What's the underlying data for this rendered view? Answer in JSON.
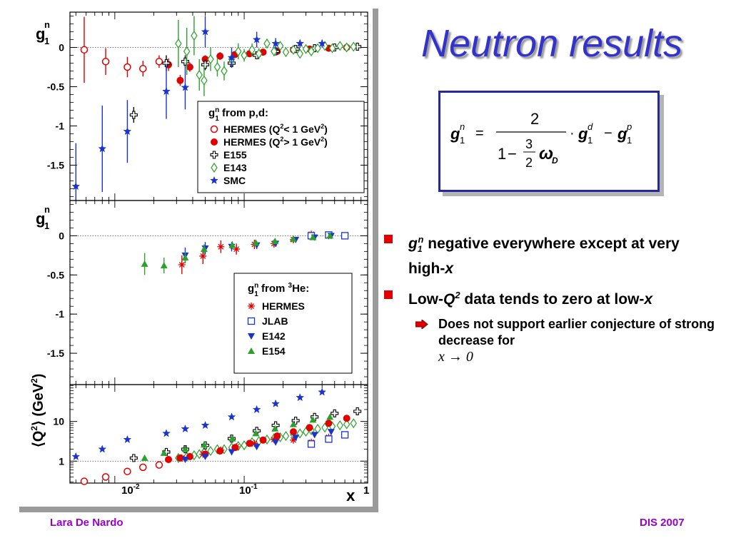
{
  "slide": {
    "title": "Neutron results",
    "footer_left": "Lara De Nardo",
    "footer_right": "DIS 2007"
  },
  "formula": {
    "lhs": "g",
    "lhs_sup": "n",
    "lhs_sub": "1",
    "equals": "=",
    "numerator": "2",
    "denom_one": "1",
    "denom_minus": "−",
    "frac_num": "3",
    "frac_den": "2",
    "omega": "ω",
    "omega_sub": "D",
    "dot": "·",
    "g_d": "g",
    "g_d_sup": "d",
    "g_d_sub": "1",
    "minus": "−",
    "g_p": "g",
    "g_p_sup": "p",
    "g_p_sub": "1"
  },
  "bullets": [
    {
      "italic": "g",
      "sub": "1",
      "sup": "n",
      "text": " negative everywhere except at very high-",
      "tail": "x"
    },
    {
      "pre": "Low-",
      "italic": "Q",
      "sup": "2",
      "text": " data tends to zero at low-",
      "tail": "x"
    }
  ],
  "sub_bullet": {
    "text": "Does not support earlier conjecture of strong decrease for",
    "math": "x → 0"
  },
  "colors": {
    "title": "#3333cc",
    "footer": "#9900cc",
    "bullet": "#e00000",
    "box_border": "#26289a"
  },
  "chart_data": [
    {
      "type": "scatter",
      "title": "",
      "ylabel_main": "g",
      "ylabel_sup": "n",
      "ylabel_sub": "1",
      "xscale": "log",
      "xlim": [
        0.0045,
        0.9
      ],
      "ylim": [
        -1.95,
        0.45
      ],
      "yticks": [
        "0",
        "-0.5",
        "-1",
        "-1.5"
      ],
      "ytick_values": [
        0,
        -0.5,
        -1,
        -1.5
      ],
      "legend": {
        "title": "g",
        "title_sup": "n",
        "title_sub": "1",
        "title_rest": " from p,d:",
        "placement": "bottom-right",
        "entries": [
          "HERMES (Q",
          "HERMES (Q",
          "E155",
          "E143",
          "SMC"
        ],
        "entries_sup": [
          "2",
          "2",
          "",
          "",
          ""
        ],
        "entries_rest": [
          "< 1 GeV",
          "> 1 GeV",
          "",
          "",
          ""
        ],
        "entries_sup2": [
          "2",
          "2",
          "",
          "",
          ""
        ],
        "entries_tail": [
          ")",
          ")",
          "",
          "",
          ""
        ]
      },
      "series": [
        {
          "name": "HERMES (Q2< 1 GeV2)",
          "marker": "circle-open",
          "color": "#e00000",
          "x": [
            0.0058,
            0.0085,
            0.0125,
            0.0165,
            0.022
          ],
          "y": [
            -0.03,
            -0.18,
            -0.25,
            -0.27,
            -0.18
          ],
          "err": [
            0.42,
            0.17,
            0.13,
            0.1,
            0.08
          ]
        },
        {
          "name": "HERMES (Q2> 1 GeV2)",
          "marker": "circle-filled",
          "color": "#e00000",
          "x": [
            0.026,
            0.032,
            0.038,
            0.05,
            0.065,
            0.085,
            0.11,
            0.14,
            0.18,
            0.24,
            0.32,
            0.45,
            0.62
          ],
          "y": [
            -0.22,
            -0.42,
            -0.25,
            -0.15,
            -0.11,
            -0.09,
            -0.08,
            -0.06,
            -0.05,
            -0.03,
            -0.02,
            -0.01,
            0.0
          ],
          "err": [
            0.08,
            0.07,
            0.06,
            0.05,
            0.05,
            0.04,
            0.04,
            0.03,
            0.03,
            0.03,
            0.02,
            0.02,
            0.02
          ]
        },
        {
          "name": "E155",
          "marker": "cross-open",
          "color": "#000000",
          "x": [
            0.014,
            0.025,
            0.035,
            0.05,
            0.08,
            0.125,
            0.175,
            0.25,
            0.35,
            0.5,
            0.75
          ],
          "y": [
            -0.86,
            -0.2,
            -0.18,
            -0.22,
            -0.2,
            -0.1,
            -0.05,
            -0.02,
            -0.01,
            0.0,
            0.01
          ],
          "err": [
            0.1,
            0.1,
            0.08,
            0.07,
            0.05,
            0.04,
            0.03,
            0.03,
            0.02,
            0.02,
            0.02
          ]
        },
        {
          "name": "E143",
          "marker": "diamond-open",
          "color": "#2ca02c",
          "x": [
            0.031,
            0.036,
            0.041,
            0.045,
            0.049,
            0.055,
            0.062,
            0.07,
            0.08,
            0.09,
            0.1,
            0.115,
            0.13,
            0.15,
            0.17,
            0.19,
            0.21,
            0.24,
            0.27,
            0.3,
            0.33,
            0.37,
            0.42,
            0.48,
            0.55,
            0.62,
            0.7
          ],
          "y": [
            0.05,
            -0.05,
            0.15,
            -0.35,
            -0.42,
            -0.15,
            -0.25,
            -0.3,
            -0.15,
            -0.05,
            -0.1,
            -0.03,
            -0.08,
            0.05,
            -0.05,
            0.02,
            -0.06,
            -0.03,
            -0.08,
            -0.02,
            -0.05,
            -0.01,
            0.02,
            -0.01,
            0.02,
            0.0,
            0.01
          ],
          "err": [
            0.3,
            0.3,
            0.25,
            0.2,
            0.2,
            0.15,
            0.12,
            0.12,
            0.1,
            0.1,
            0.08,
            0.08,
            0.07,
            0.06,
            0.06,
            0.05,
            0.05,
            0.04,
            0.04,
            0.04,
            0.03,
            0.03,
            0.03,
            0.03,
            0.02,
            0.02,
            0.02
          ]
        },
        {
          "name": "SMC",
          "marker": "star",
          "color": "#1a33cc",
          "x": [
            0.005,
            0.008,
            0.0125,
            0.025,
            0.035,
            0.05,
            0.08,
            0.125,
            0.175,
            0.27,
            0.4
          ],
          "y": [
            -1.77,
            -1.29,
            -1.07,
            -0.56,
            -0.51,
            0.2,
            -0.13,
            0.1,
            0.05,
            0.05,
            0.05
          ],
          "err": [
            0.55,
            0.55,
            0.4,
            0.35,
            0.28,
            0.2,
            0.13,
            0.1,
            0.07,
            0.05,
            0.05
          ]
        }
      ]
    },
    {
      "type": "scatter",
      "title": "",
      "ylabel_main": "g",
      "ylabel_sup": "n",
      "ylabel_sub": "1",
      "xscale": "log",
      "xlim": [
        0.0045,
        0.9
      ],
      "ylim": [
        -1.9,
        0.45
      ],
      "yticks": [
        "0",
        "-0.5",
        "-1",
        "-1.5"
      ],
      "ytick_values": [
        0,
        -0.5,
        -1,
        -1.5
      ],
      "legend": {
        "title": "g",
        "title_sup": "n",
        "title_sub": "1",
        "title_rest": " from ",
        "title_sup2": "3",
        "title_tail": "He:",
        "placement": "bottom-right",
        "entries": [
          "HERMES",
          "JLAB",
          "E142",
          "E154"
        ]
      },
      "series": [
        {
          "name": "HERMES",
          "marker": "asterisk",
          "color": "#e00000",
          "x": [
            0.033,
            0.048,
            0.066,
            0.087,
            0.12,
            0.17,
            0.24,
            0.33,
            0.45
          ],
          "y": [
            -0.37,
            -0.26,
            -0.14,
            -0.17,
            -0.11,
            -0.1,
            -0.05,
            0.02,
            0.0
          ],
          "err": [
            0.12,
            0.1,
            0.08,
            0.07,
            0.06,
            0.05,
            0.04,
            0.03,
            0.03
          ]
        },
        {
          "name": "JLAB",
          "marker": "square-open",
          "color": "#1a33cc",
          "x": [
            0.33,
            0.45,
            0.6
          ],
          "y": [
            0.0,
            0.01,
            0.0
          ],
          "err": [
            0.02,
            0.02,
            0.02
          ]
        },
        {
          "name": "E142",
          "marker": "triangle-down",
          "color": "#1a33cc",
          "x": [
            0.035,
            0.05,
            0.08,
            0.125,
            0.175,
            0.25,
            0.35,
            0.47
          ],
          "y": [
            -0.25,
            -0.16,
            -0.14,
            -0.12,
            -0.1,
            -0.05,
            -0.02,
            0.0
          ],
          "err": [
            0.1,
            0.08,
            0.06,
            0.05,
            0.04,
            0.03,
            0.03,
            0.02
          ]
        },
        {
          "name": "E154",
          "marker": "triangle-up",
          "color": "#2ca02c",
          "x": [
            0.017,
            0.024,
            0.035,
            0.049,
            0.081,
            0.123,
            0.173,
            0.24,
            0.34,
            0.46
          ],
          "y": [
            -0.36,
            -0.38,
            -0.28,
            -0.17,
            -0.12,
            -0.09,
            -0.07,
            -0.04,
            -0.02,
            0.0
          ],
          "err": [
            0.14,
            0.1,
            0.07,
            0.06,
            0.05,
            0.04,
            0.03,
            0.03,
            0.02,
            0.02
          ]
        }
      ]
    },
    {
      "type": "scatter",
      "title": "",
      "ylabel": "⟨Q²⟩ (GeV²)",
      "ylabel_l": "⟨Q",
      "ylabel_sup": "2",
      "ylabel_r": "⟩ (GeV",
      "ylabel_sup2": "2",
      "ylabel_end": ")",
      "xscale": "log",
      "yscale": "log",
      "xlim": [
        0.0045,
        0.9
      ],
      "ylim": [
        0.28,
        85
      ],
      "yticks": [
        "1",
        "10"
      ],
      "ytick_values": [
        1,
        10
      ],
      "xticks": [
        "10",
        "10",
        "1"
      ],
      "xticks_sup": [
        "-2",
        "-1",
        ""
      ],
      "xtick_values": [
        0.01,
        0.1,
        1
      ],
      "xlabel": "x",
      "series": [
        {
          "name": "SMC",
          "marker": "star",
          "color": "#1a33cc",
          "x": [
            0.005,
            0.008,
            0.0125,
            0.025,
            0.035,
            0.05,
            0.08,
            0.125,
            0.175,
            0.27,
            0.4
          ],
          "y": [
            1.3,
            2.0,
            3.5,
            5.0,
            6.5,
            8.0,
            13.0,
            20.0,
            28.0,
            40.0,
            55.0
          ]
        },
        {
          "name": "E143",
          "marker": "diamond-open",
          "color": "#2ca02c",
          "x": [
            0.031,
            0.036,
            0.041,
            0.045,
            0.049,
            0.055,
            0.062,
            0.07,
            0.08,
            0.09,
            0.1,
            0.115,
            0.13,
            0.15,
            0.17,
            0.19,
            0.21,
            0.24,
            0.27,
            0.3,
            0.33,
            0.37,
            0.42,
            0.48,
            0.55,
            0.62,
            0.7
          ],
          "y": [
            1.2,
            1.3,
            1.4,
            1.5,
            1.7,
            1.8,
            2.0,
            2.0,
            2.2,
            2.4,
            2.5,
            3.0,
            3.2,
            3.5,
            3.8,
            4.0,
            4.3,
            4.7,
            5.0,
            5.5,
            6.0,
            6.5,
            7.0,
            7.5,
            8.0,
            8.5,
            9.0
          ]
        },
        {
          "name": "E155",
          "marker": "cross-open",
          "color": "#000000",
          "x": [
            0.014,
            0.025,
            0.035,
            0.05,
            0.08,
            0.125,
            0.175,
            0.25,
            0.35,
            0.5,
            0.75
          ],
          "y": [
            1.2,
            1.7,
            2.0,
            2.5,
            3.7,
            5.8,
            8.0,
            10.5,
            13.0,
            16.0,
            18.0
          ]
        },
        {
          "name": "HERMES (Q2< 1 GeV2)",
          "marker": "circle-open",
          "color": "#e00000",
          "x": [
            0.0058,
            0.0085,
            0.0125,
            0.0165,
            0.022
          ],
          "y": [
            0.31,
            0.4,
            0.55,
            0.7,
            0.8
          ]
        },
        {
          "name": "HERMES (Q2> 1 GeV2)",
          "marker": "circle-filled",
          "color": "#e00000",
          "x": [
            0.026,
            0.032,
            0.038,
            0.05,
            0.065,
            0.085,
            0.11,
            0.14,
            0.18,
            0.24,
            0.32,
            0.45,
            0.62
          ],
          "y": [
            1.1,
            1.2,
            1.3,
            1.5,
            1.8,
            2.2,
            2.8,
            3.4,
            4.3,
            5.5,
            7.0,
            9.0,
            12.0
          ]
        },
        {
          "name": "HERMES 3He",
          "marker": "asterisk",
          "color": "#e00000",
          "x": [
            0.033,
            0.048,
            0.066,
            0.087,
            0.12,
            0.17,
            0.24,
            0.33,
            0.45
          ],
          "y": [
            1.2,
            1.5,
            1.9,
            2.3,
            2.8,
            3.5,
            3.4,
            3.0,
            4.0
          ]
        },
        {
          "name": "JLAB",
          "marker": "square-open",
          "color": "#1a33cc",
          "x": [
            0.33,
            0.45,
            0.6
          ],
          "y": [
            2.7,
            3.6,
            4.6
          ]
        },
        {
          "name": "E142",
          "marker": "triangle-down",
          "color": "#1a33cc",
          "x": [
            0.035,
            0.05,
            0.08,
            0.125,
            0.175,
            0.25,
            0.35,
            0.47
          ],
          "y": [
            1.1,
            1.3,
            1.7,
            2.3,
            3.0,
            3.9,
            4.6,
            5.5
          ]
        },
        {
          "name": "E154",
          "marker": "triangle-up",
          "color": "#2ca02c",
          "x": [
            0.017,
            0.024,
            0.035,
            0.049,
            0.081,
            0.123,
            0.173,
            0.24,
            0.34,
            0.46
          ],
          "y": [
            1.2,
            1.6,
            2.0,
            2.6,
            3.7,
            5.0,
            6.6,
            8.5,
            11.0,
            13.0
          ]
        }
      ]
    }
  ]
}
